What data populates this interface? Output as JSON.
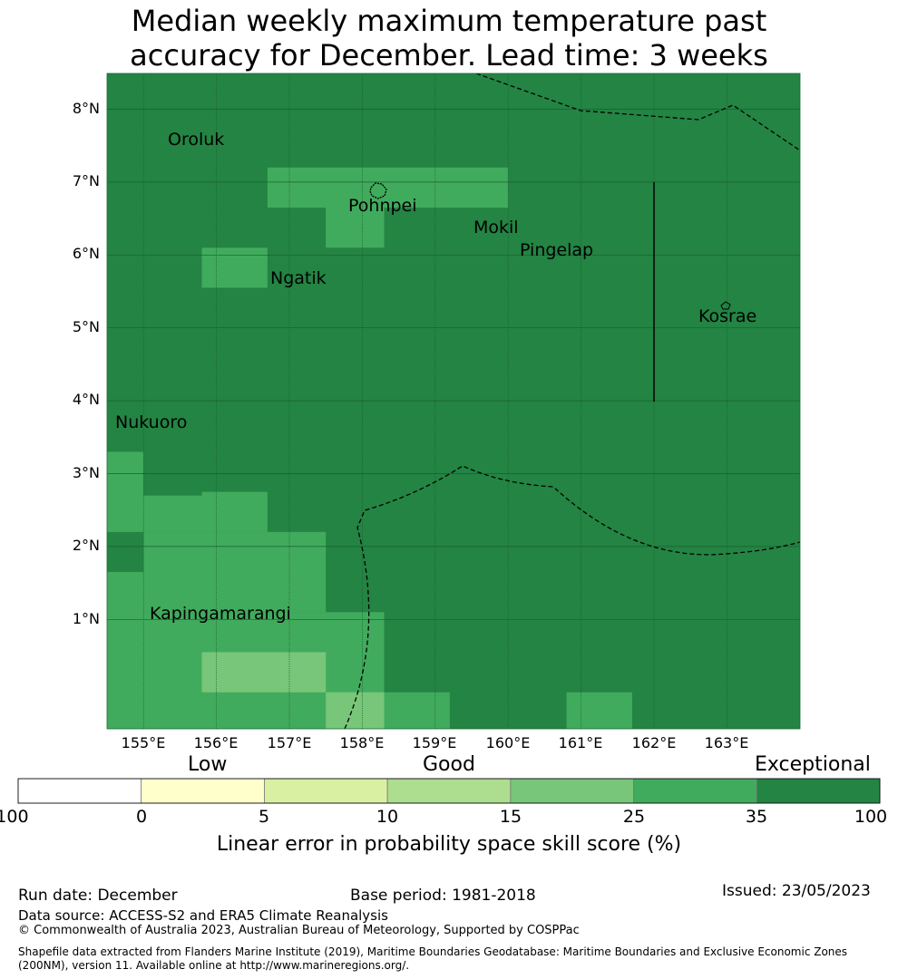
{
  "title_line1": "Median weekly maximum temperature past",
  "title_line2": "accuracy for December. Lead time: 3 weeks",
  "lat_labels": [
    "8°N",
    "7°N",
    "6°N",
    "5°N",
    "4°N",
    "3°N",
    "2°N",
    "1°N"
  ],
  "lon_labels": [
    "155°E",
    "156°E",
    "157°E",
    "158°E",
    "159°E",
    "160°E",
    "161°E",
    "162°E",
    "163°E"
  ],
  "places": [
    "Oroluk",
    "Pohnpei",
    "Mokil",
    "Pingelap",
    "Ngatik",
    "Kosrae",
    "Nukuoro",
    "Kapingamarangi"
  ],
  "legend": {
    "categories": [
      "Low",
      "Good",
      "Exceptional"
    ],
    "ticks": [
      "-100",
      "0",
      "5",
      "10",
      "15",
      "25",
      "35",
      "100"
    ],
    "colors": [
      "#ffffff",
      "#ffffcc",
      "#d9f0a3",
      "#addd8e",
      "#78c679",
      "#41ab5d",
      "#238443"
    ],
    "title": "Linear error in probability space skill score (%)"
  },
  "footer": {
    "run_date": "Run date: December",
    "base_period": "Base period: 1981-2018",
    "issued": "Issued: 23/05/2023",
    "data_source": "Data source: ACCESS-S2 and ERA5 Climate Reanalysis",
    "copyright": "© Commonwealth of Australia 2023, Australian Bureau of Meteorology, Supported by COSPPac",
    "shapefile_line1": "Shapefile data extracted from Flanders Marine Institute (2019), Maritime Boundaries Geodatabase: Maritime Boundaries and Exclusive Economic Zones",
    "shapefile_line2": "(200NM), version 11. Available online at http://www.marineregions.org/."
  },
  "map_cells": [
    {
      "lon": [
        156.7,
        160.0
      ],
      "lat": [
        6.65,
        7.2
      ],
      "score": 30
    },
    {
      "lon": [
        157.5,
        158.3
      ],
      "lat": [
        6.1,
        6.65
      ],
      "score": 30
    },
    {
      "lon": [
        155.8,
        156.7
      ],
      "lat": [
        5.55,
        6.1
      ],
      "score": 30
    },
    {
      "lon": [
        154.5,
        155.0
      ],
      "lat": [
        2.2,
        3.3
      ],
      "score": 30
    },
    {
      "lon": [
        155.0,
        155.8
      ],
      "lat": [
        2.2,
        2.7
      ],
      "score": 30
    },
    {
      "lon": [
        155.8,
        156.7
      ],
      "lat": [
        2.2,
        2.75
      ],
      "score": 30
    },
    {
      "lon": [
        155.0,
        157.5
      ],
      "lat": [
        1.1,
        2.2
      ],
      "score": 30
    },
    {
      "lon": [
        154.5,
        155.0
      ],
      "lat": [
        -0.5,
        1.65
      ],
      "score": 30
    },
    {
      "lon": [
        155.0,
        158.3
      ],
      "lat": [
        -0.5,
        1.1
      ],
      "score": 30
    },
    {
      "lon": [
        158.3,
        159.2
      ],
      "lat": [
        -0.5,
        0.0
      ],
      "score": 30
    },
    {
      "lon": [
        160.8,
        161.7
      ],
      "lat": [
        -0.5,
        0.0
      ],
      "score": 30
    },
    {
      "lon": [
        155.8,
        157.5
      ],
      "lat": [
        0.0,
        0.55
      ],
      "score": 20
    },
    {
      "lon": [
        157.5,
        158.3
      ],
      "lat": [
        -0.5,
        0.0
      ],
      "score": 20
    }
  ]
}
